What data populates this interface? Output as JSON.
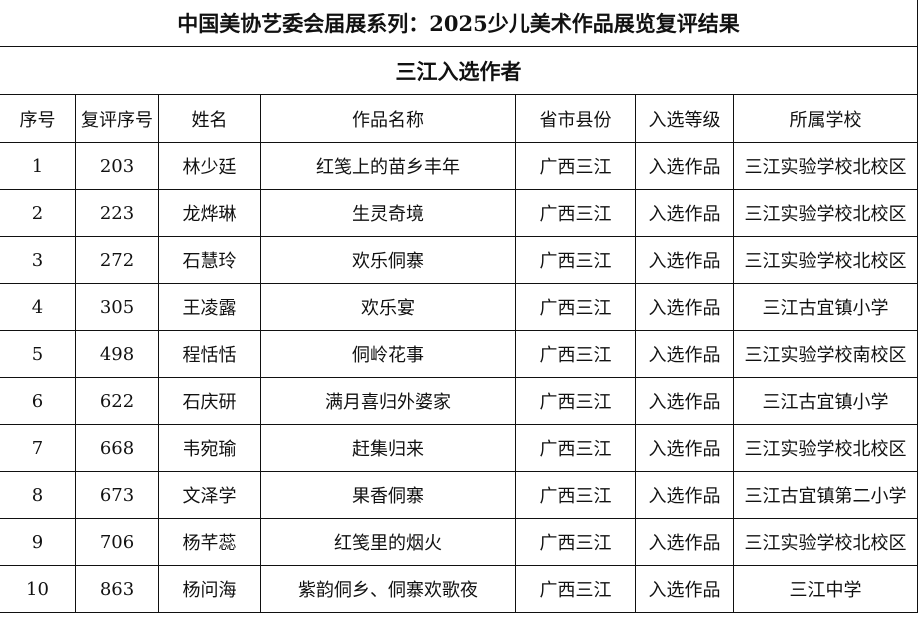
{
  "title": "中国美协艺委会届展系列：2025少儿美术作品展览复评结果",
  "subtitle": "三江入选作者",
  "headers": [
    "序号",
    "复评序号",
    "姓名",
    "作品名称",
    "省市县份",
    "入选等级",
    "所属学校"
  ],
  "rows": [
    [
      "1",
      "203",
      "林少廷",
      "红笺上的苗乡丰年",
      "广西三江",
      "入选作品",
      "三江实验学校北校区"
    ],
    [
      "2",
      "223",
      "龙烨琳",
      "生灵奇境",
      "广西三江",
      "入选作品",
      "三江实验学校北校区"
    ],
    [
      "3",
      "272",
      "石慧玲",
      "欢乐侗寨",
      "广西三江",
      "入选作品",
      "三江实验学校北校区"
    ],
    [
      "4",
      "305",
      "王凌露",
      "欢乐宴",
      "广西三江",
      "入选作品",
      "三江古宜镇小学"
    ],
    [
      "5",
      "498",
      "程恬恬",
      "侗岭花事",
      "广西三江",
      "入选作品",
      "三江实验学校南校区"
    ],
    [
      "6",
      "622",
      "石庆研",
      "满月喜归外婆家",
      "广西三江",
      "入选作品",
      "三江古宜镇小学"
    ],
    [
      "7",
      "668",
      "韦宛瑜",
      "赶集归来",
      "广西三江",
      "入选作品",
      "三江实验学校北校区"
    ],
    [
      "8",
      "673",
      "文泽学",
      "果香侗寨",
      "广西三江",
      "入选作品",
      "三江古宜镇第二小学"
    ],
    [
      "9",
      "706",
      "杨芊蕊",
      "红笺里的烟火",
      "广西三江",
      "入选作品",
      "三江实验学校北校区"
    ],
    [
      "10",
      "863",
      "杨问海",
      "紫韵侗乡、侗寨欢歌夜",
      "广西三江",
      "入选作品",
      "三江中学"
    ]
  ]
}
